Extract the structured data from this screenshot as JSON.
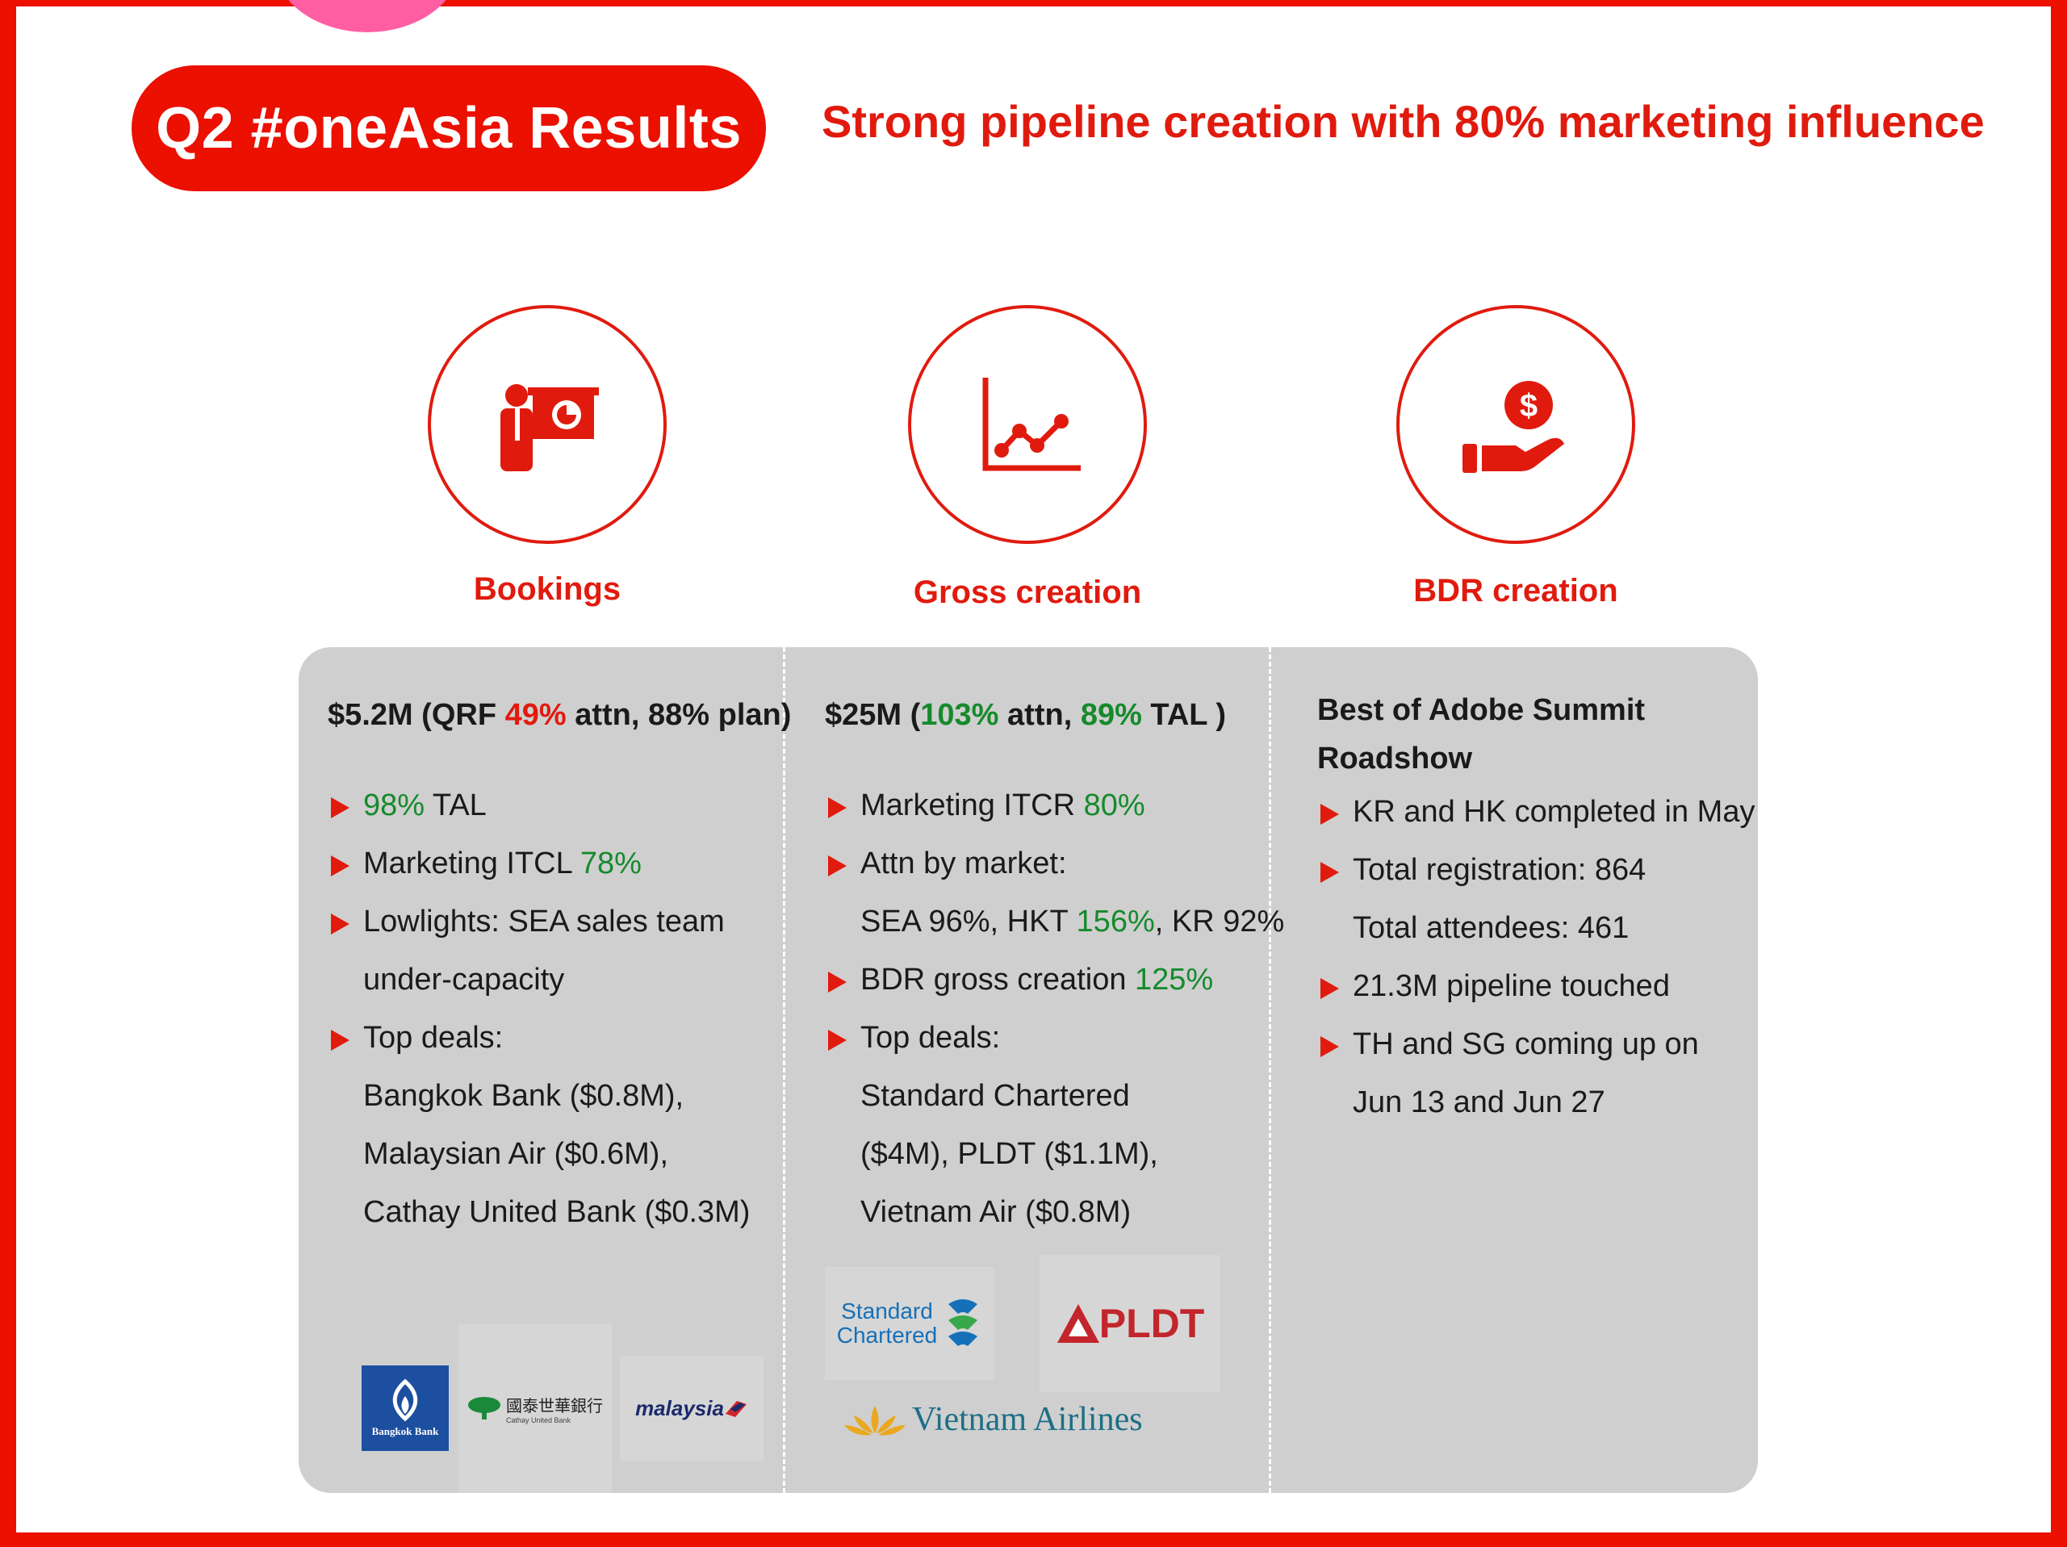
{
  "header": {
    "title": "Q2 #oneAsia Results",
    "subtitle": "Strong pipeline creation with 80% marketing influence"
  },
  "colors": {
    "accent": "#eb1000",
    "positive": "#168a2c",
    "panel": "#cfcfcf"
  },
  "categories": [
    {
      "label": "Bookings",
      "icon": "presentation-icon"
    },
    {
      "label": "Gross creation",
      "icon": "line-chart-icon"
    },
    {
      "label": "BDR creation",
      "icon": "dollar-hand-icon"
    }
  ],
  "bookings": {
    "head": {
      "a": "$5.2M (QRF ",
      "b": "49%",
      "c": " attn, 88% plan)"
    },
    "b1": {
      "a": "98%",
      "b": " TAL"
    },
    "b2": {
      "a": "Marketing ITCL ",
      "b": "78%"
    },
    "b3": {
      "line1": "Lowlights: SEA sales team",
      "line2": "under-capacity"
    },
    "b4": {
      "line1": "Top deals:",
      "line2": "Bangkok Bank ($0.8M),",
      "line3": "Malaysian Air ($0.6M),",
      "line4": "Cathay United Bank ($0.3M)"
    },
    "logos": {
      "bangkok": "Bangkok Bank",
      "cathay_cn": "國泰世華銀行",
      "cathay_en": "Cathay United Bank",
      "malaysia": "malaysia"
    }
  },
  "gross": {
    "head": {
      "a": "$25M (",
      "b": "103%",
      "c": " attn, ",
      "d": "89%",
      "e": " TAL )"
    },
    "b1": {
      "a": "Marketing ITCR ",
      "b": "80%"
    },
    "b2": {
      "line1": "Attn by market:",
      "line2a": "SEA 96%, HKT ",
      "line2b": "156%",
      "line2c": ", KR 92%"
    },
    "b3": {
      "a": "BDR gross creation ",
      "b": "125%"
    },
    "b4": {
      "line1": "Top deals:",
      "line2": "Standard Chartered",
      "line3": "($4M), PLDT ($1.1M),",
      "line4": "Vietnam Air ($0.8M)"
    },
    "logos": {
      "sc1": "Standard",
      "sc2": "Chartered",
      "pldt": "PLDT",
      "vietnam": "Vietnam Airlines"
    }
  },
  "bdr": {
    "head": "Best of Adobe Summit Roadshow",
    "b1": "KR and HK completed in May",
    "b2": {
      "line1": "Total registration: 864",
      "line2": "Total attendees: 461"
    },
    "b3": "21.3M pipeline touched",
    "b4": {
      "line1": "TH and SG coming up on",
      "line2": "Jun 13 and Jun 27"
    }
  }
}
